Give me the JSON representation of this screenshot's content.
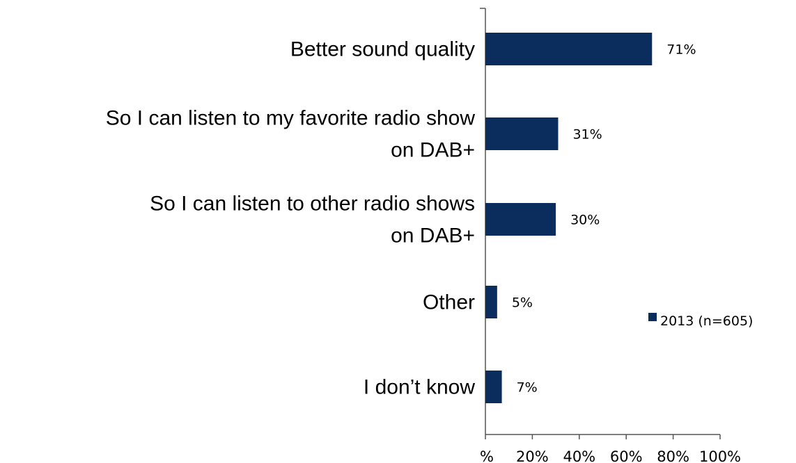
{
  "chart_data": {
    "type": "bar",
    "orientation": "horizontal",
    "categories": [
      [
        "Better sound quality"
      ],
      [
        "So I can listen to my favorite radio show",
        "on DAB+"
      ],
      [
        "So I can listen to other radio shows",
        "on DAB+"
      ],
      [
        "Other"
      ],
      [
        "I don’t know"
      ]
    ],
    "series": [
      {
        "name": "2013 (n=605)",
        "values": [
          71,
          31,
          30,
          5,
          7
        ],
        "value_labels": [
          "71%",
          "31%",
          "30%",
          "5%",
          "7%"
        ],
        "color": "#0a2d5e"
      }
    ],
    "x_ticks": [
      "%",
      "20%",
      "40%",
      "60%",
      "80%",
      "100%"
    ],
    "xlim": [
      0,
      100
    ],
    "grid": false,
    "legend": "right"
  }
}
